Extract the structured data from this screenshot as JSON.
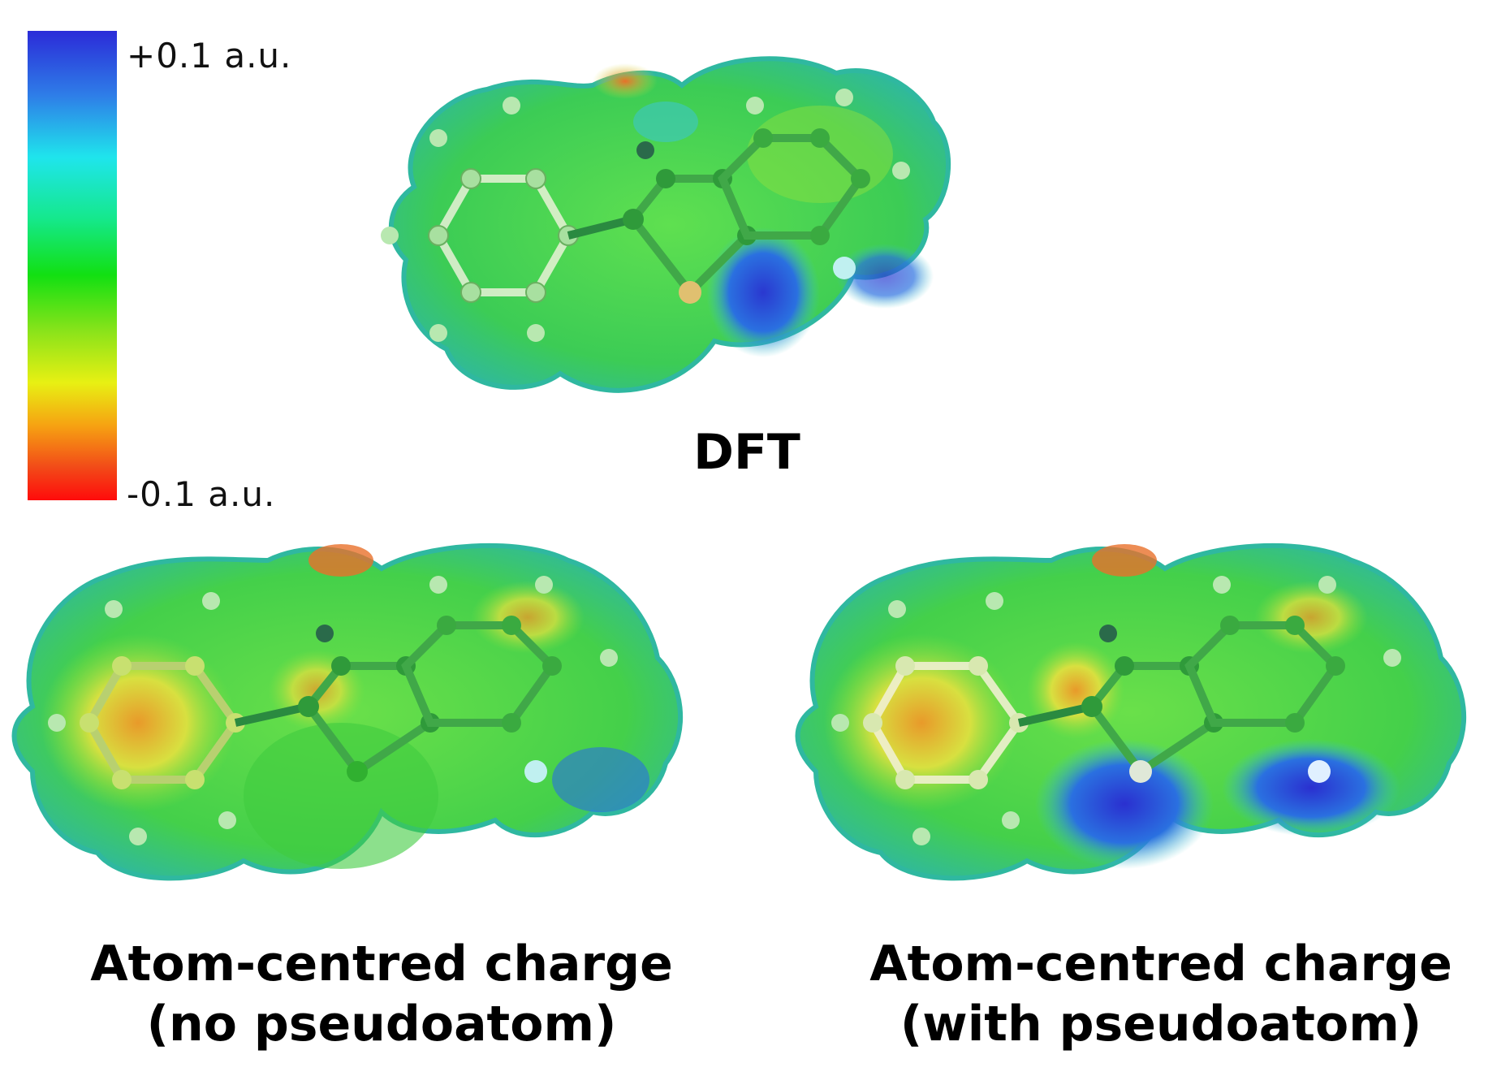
{
  "colorbar": {
    "max_label": "+0.1 a.u.",
    "min_label": "-0.1 a.u.",
    "colors": [
      "#2b2bd8",
      "#1fe5ec",
      "#12e012",
      "#e8f013",
      "#ff0b0b"
    ]
  },
  "panels": [
    {
      "id": "dft",
      "caption_line1": "DFT",
      "caption_line2": ""
    },
    {
      "id": "no-pseudo",
      "caption_line1": "Atom-centred charge",
      "caption_line2": "(no pseudoatom)"
    },
    {
      "id": "with-pseudo",
      "caption_line1": "Atom-centred charge",
      "caption_line2": "(with pseudoatom)"
    }
  ],
  "surface_colors": {
    "green": "#4fd84a",
    "yellow": "#d8e040",
    "orange": "#e88a2a",
    "blue": "#2a5ad8",
    "cyan": "#3cc6c8"
  }
}
